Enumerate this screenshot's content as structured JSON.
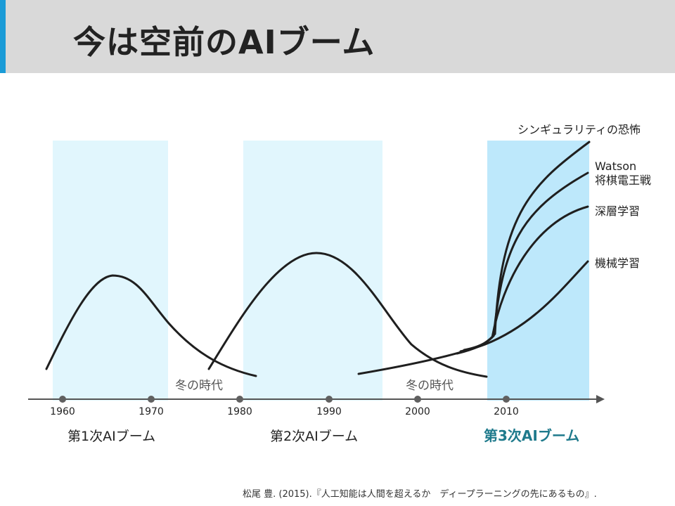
{
  "title": "今は空前のAIブーム",
  "colors": {
    "title_bar": "#d9d9d9",
    "accent": "#1a9bd7",
    "boom_band": "#e1f6fd",
    "boom_band_current": "#bde8fb",
    "curve": "#1f1f1f",
    "axis": "#555555",
    "third_boom_label": "#1f7a8c"
  },
  "timeline": {
    "ticks": [
      "1960",
      "1970",
      "1980",
      "1990",
      "2000",
      "2010"
    ],
    "winter_label": "冬の時代"
  },
  "booms": [
    {
      "label": "第1次AIブーム",
      "emphasis": false
    },
    {
      "label": "第2次AIブーム",
      "emphasis": false
    },
    {
      "label": "第3次AIブーム",
      "emphasis": true
    }
  ],
  "curve_labels": {
    "singularity": "シンギュラリティの恐怖",
    "watson": "Watson",
    "shogi": "将棋電王戦",
    "deep_learning": "深層学習",
    "machine_learning": "機械学習"
  },
  "citation": "松尾 豊. (2015).『人工知能は人間を超えるか　ディープラーニングの先にあるもの』."
}
